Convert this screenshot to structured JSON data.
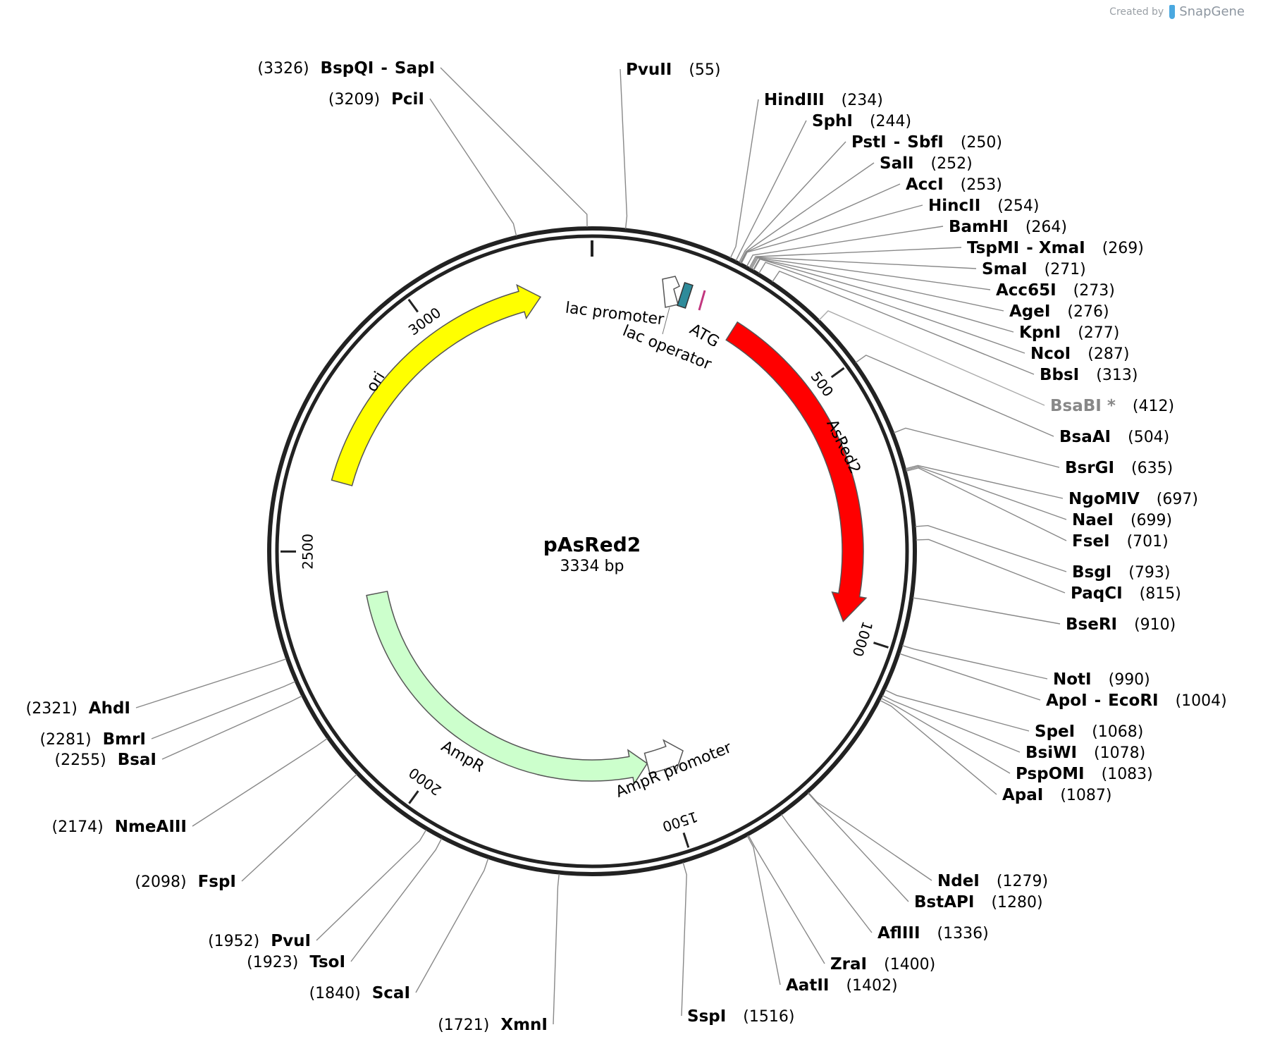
{
  "watermark": {
    "prefix": "Created by",
    "brand": "SnapGene"
  },
  "plasmid": {
    "name": "pAsRed2",
    "size_label": "3334 bp",
    "length_bp": 3334
  },
  "ticks": [
    "500",
    "1000",
    "1500",
    "2000",
    "2500",
    "3000"
  ],
  "features": [
    {
      "name": "AsRed2",
      "color": "#ff0000",
      "direction": "forward",
      "label_color": "#ffffff"
    },
    {
      "name": "ori",
      "color": "#ffff00",
      "direction": "forward",
      "label_color": "#000000"
    },
    {
      "name": "AmpR",
      "color": "#ccffcc",
      "direction": "reverse",
      "label_color": "#000000"
    },
    {
      "name": "AmpR promoter",
      "color": "#ffffff",
      "direction": "reverse",
      "label_color": "#000000"
    },
    {
      "name": "lac promoter",
      "color": "#ffffff",
      "direction": "forward",
      "label_color": "#000000"
    },
    {
      "name": "lac operator",
      "color": "#2e8b9a",
      "direction": "none",
      "label_color": "#000000"
    },
    {
      "name": "ATG",
      "color": "#c2377f",
      "direction": "none",
      "label_color": "#000000"
    }
  ],
  "sites": [
    {
      "name": "BspQI",
      "name2": "SapI",
      "pos": "(3326)"
    },
    {
      "name": "PvuII",
      "pos": "(55)"
    },
    {
      "name": "PciI",
      "pos": "(3209)"
    },
    {
      "name": "HindIII",
      "pos": "(234)"
    },
    {
      "name": "SphI",
      "pos": "(244)"
    },
    {
      "name": "PstI",
      "name2": "SbfI",
      "pos": "(250)"
    },
    {
      "name": "SalI",
      "pos": "(252)"
    },
    {
      "name": "AccI",
      "pos": "(253)"
    },
    {
      "name": "HincII",
      "pos": "(254)"
    },
    {
      "name": "BamHI",
      "pos": "(264)"
    },
    {
      "name": "TspMI",
      "name2": "XmaI",
      "pos": "(269)"
    },
    {
      "name": "SmaI",
      "pos": "(271)"
    },
    {
      "name": "Acc65I",
      "pos": "(273)"
    },
    {
      "name": "AgeI",
      "pos": "(276)"
    },
    {
      "name": "KpnI",
      "pos": "(277)"
    },
    {
      "name": "NcoI",
      "pos": "(287)"
    },
    {
      "name": "BbsI",
      "pos": "(313)"
    },
    {
      "name": "BsaBI *",
      "pos": "(412)",
      "gray": true
    },
    {
      "name": "BsaAI",
      "pos": "(504)"
    },
    {
      "name": "BsrGI",
      "pos": "(635)"
    },
    {
      "name": "NgoMIV",
      "pos": "(697)"
    },
    {
      "name": "NaeI",
      "pos": "(699)"
    },
    {
      "name": "FseI",
      "pos": "(701)"
    },
    {
      "name": "BsgI",
      "pos": "(793)"
    },
    {
      "name": "PaqCI",
      "pos": "(815)"
    },
    {
      "name": "BseRI",
      "pos": "(910)"
    },
    {
      "name": "NotI",
      "pos": "(990)"
    },
    {
      "name": "ApoI",
      "name2": "EcoRI",
      "pos": "(1004)"
    },
    {
      "name": "SpeI",
      "pos": "(1068)"
    },
    {
      "name": "BsiWI",
      "pos": "(1078)"
    },
    {
      "name": "PspOMI",
      "pos": "(1083)"
    },
    {
      "name": "ApaI",
      "pos": "(1087)"
    },
    {
      "name": "NdeI",
      "pos": "(1279)"
    },
    {
      "name": "BstAPI",
      "pos": "(1280)"
    },
    {
      "name": "AflIII",
      "pos": "(1336)"
    },
    {
      "name": "ZraI",
      "pos": "(1400)"
    },
    {
      "name": "AatII",
      "pos": "(1402)"
    },
    {
      "name": "SspI",
      "pos": "(1516)"
    },
    {
      "name": "XmnI",
      "pos": "(1721)"
    },
    {
      "name": "ScaI",
      "pos": "(1840)"
    },
    {
      "name": "TsoI",
      "pos": "(1923)"
    },
    {
      "name": "PvuI",
      "pos": "(1952)"
    },
    {
      "name": "FspI",
      "pos": "(2098)"
    },
    {
      "name": "NmeAIII",
      "pos": "(2174)"
    },
    {
      "name": "BsaI",
      "pos": "(2255)"
    },
    {
      "name": "BmrI",
      "pos": "(2281)"
    },
    {
      "name": "AhdI",
      "pos": "(2321)"
    }
  ]
}
